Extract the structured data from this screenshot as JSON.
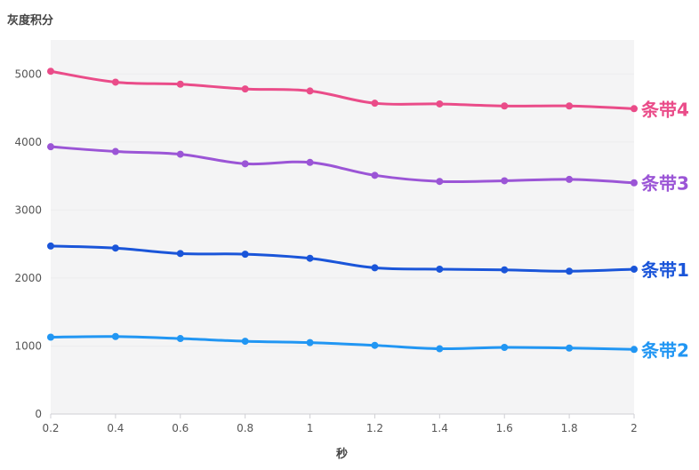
{
  "chart_data": {
    "type": "line",
    "ylabel": "灰度积分",
    "xlabel": "秒",
    "x": [
      0.2,
      0.4,
      0.6,
      0.8,
      1.0,
      1.2,
      1.4,
      1.6,
      1.8,
      2.0
    ],
    "x_tick_labels": [
      "0.2",
      "0.4",
      "0.6",
      "0.8",
      "1",
      "1.2",
      "1.4",
      "1.6",
      "1.8",
      "2"
    ],
    "xlim": [
      0.2,
      2.0
    ],
    "ylim": [
      0,
      5500
    ],
    "y_ticks": [
      0,
      1000,
      2000,
      3000,
      4000,
      5000
    ],
    "y_tick_labels": [
      "0",
      "1000",
      "2000",
      "3000",
      "4000",
      "5000"
    ],
    "grid": true,
    "legend": "end-labels",
    "series": [
      {
        "name": "条带4",
        "color": "#ea4c89",
        "values": [
          5040,
          4880,
          4850,
          4780,
          4750,
          4570,
          4560,
          4530,
          4530,
          4490
        ]
      },
      {
        "name": "条带3",
        "color": "#9b55d6",
        "values": [
          3930,
          3860,
          3820,
          3680,
          3700,
          3510,
          3420,
          3430,
          3450,
          3400
        ]
      },
      {
        "name": "条带1",
        "color": "#1a55d9",
        "values": [
          2470,
          2440,
          2360,
          2350,
          2290,
          2150,
          2130,
          2120,
          2100,
          2130
        ]
      },
      {
        "name": "条带2",
        "color": "#2196f3",
        "values": [
          1130,
          1140,
          1110,
          1070,
          1050,
          1010,
          960,
          980,
          970,
          950
        ]
      }
    ]
  }
}
